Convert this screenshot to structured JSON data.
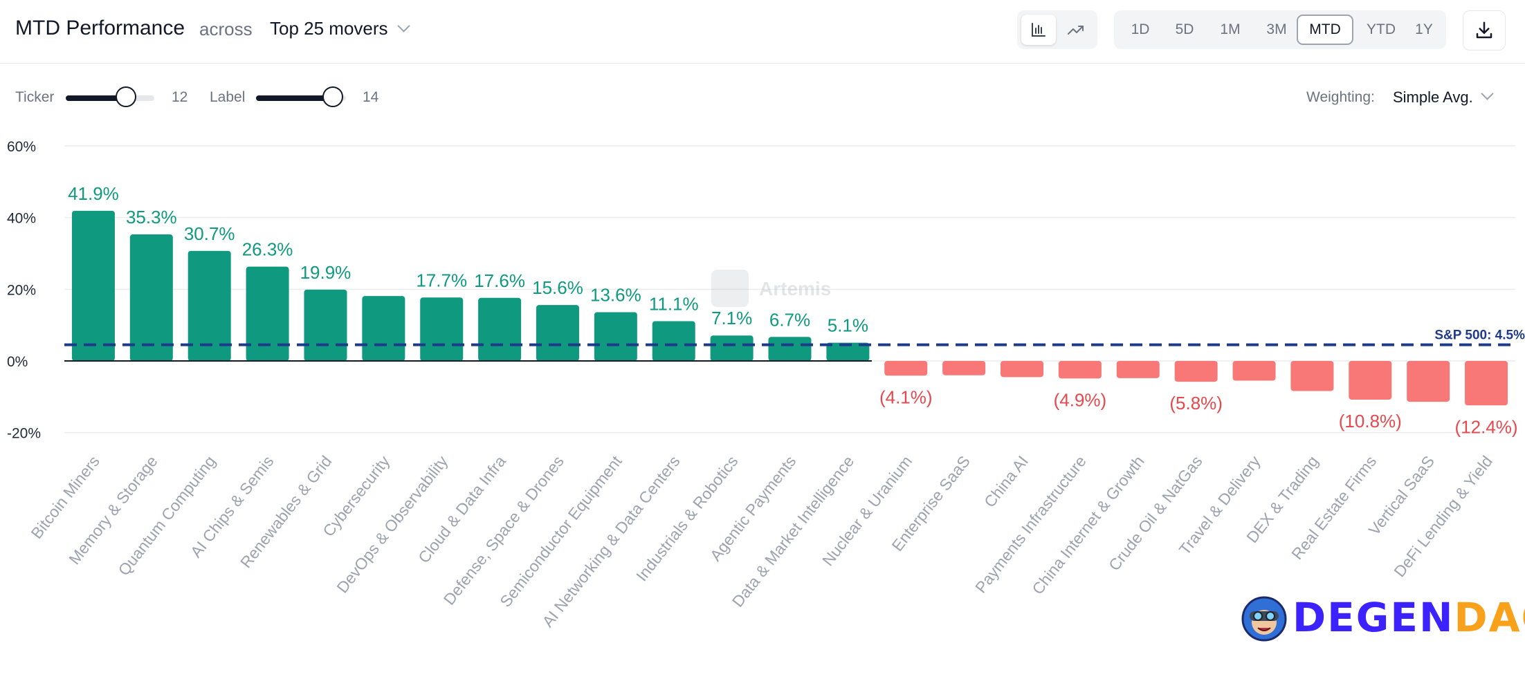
{
  "header": {
    "title": "MTD Performance",
    "across_label": "across",
    "group_selector": "Top 25 movers",
    "chart_type_buttons": [
      {
        "icon": "bar-chart-icon",
        "active": true
      },
      {
        "icon": "trend-line-icon",
        "active": false
      }
    ],
    "periods": [
      {
        "label": "1D",
        "active": false
      },
      {
        "label": "5D",
        "active": false
      },
      {
        "label": "1M",
        "active": false
      },
      {
        "label": "3M",
        "active": false
      },
      {
        "label": "MTD",
        "active": true
      },
      {
        "label": "YTD",
        "active": false
      },
      {
        "label": "1Y",
        "active": false
      }
    ],
    "download_icon": "download-icon"
  },
  "controls": {
    "ticker_label": "Ticker",
    "ticker_value": "12",
    "label_label": "Label",
    "label_value": "14",
    "weighting_label": "Weighting:",
    "weighting_value": "Simple Avg."
  },
  "watermark": "Artemis",
  "logo": {
    "text_part1": "DEGEN",
    "text_part2": "DAO!"
  },
  "colors": {
    "positive": "#0f9a80",
    "negative": "#f87878",
    "negative_label": "#e5484d",
    "benchmark": "#1e3a8a",
    "logo_blue": "#3b22ff",
    "logo_orange": "#f9a11b"
  },
  "chart_data": {
    "type": "bar",
    "categories": [
      "Bitcoin Miners",
      "Memory & Storage",
      "Quantum Computing",
      "AI Chips & Semis",
      "Renewables & Grid",
      "Cybersecurity",
      "DevOps & Observability",
      "Cloud & Data Infra",
      "Defense, Space & Drones",
      "Semiconductor Equipment",
      "AI Networking & Data Centers",
      "Industrials & Robotics",
      "Agentic Payments",
      "Data & Market Intelligence",
      "Nuclear & Uranium",
      "Enterprise SaaS",
      "China AI",
      "Payments Infrastructure",
      "China Internet & Growth",
      "Crude Oil & NatGas",
      "Travel & Delivery",
      "DEX & Trading",
      "Real Estate Firms",
      "Vertical SaaS",
      "DeFi Lending & Yield"
    ],
    "values": [
      41.9,
      35.3,
      30.7,
      26.3,
      19.9,
      18.1,
      17.7,
      17.6,
      15.6,
      13.6,
      11.1,
      7.1,
      6.7,
      5.1,
      -4.1,
      -4.0,
      -4.5,
      -4.9,
      -4.8,
      -5.8,
      -5.5,
      -8.4,
      -10.8,
      -11.4,
      -12.4
    ],
    "data_labels": [
      "41.9%",
      "35.3%",
      "30.7%",
      "26.3%",
      "19.9%",
      "",
      "17.7%",
      "17.6%",
      "15.6%",
      "13.6%",
      "11.1%",
      "7.1%",
      "6.7%",
      "5.1%",
      "(4.1%)",
      "",
      "",
      "(4.9%)",
      "",
      "(5.8%)",
      "",
      "",
      "(10.8%)",
      "",
      "(12.4%)"
    ],
    "y_ticks": [
      60,
      40,
      20,
      0,
      -20
    ],
    "y_tick_labels": [
      "60%",
      "40%",
      "20%",
      "0%",
      "-20%"
    ],
    "ylim": [
      -20,
      60
    ],
    "benchmark": {
      "label": "S&P 500: 4.5%",
      "value": 4.5
    },
    "grid": true
  }
}
